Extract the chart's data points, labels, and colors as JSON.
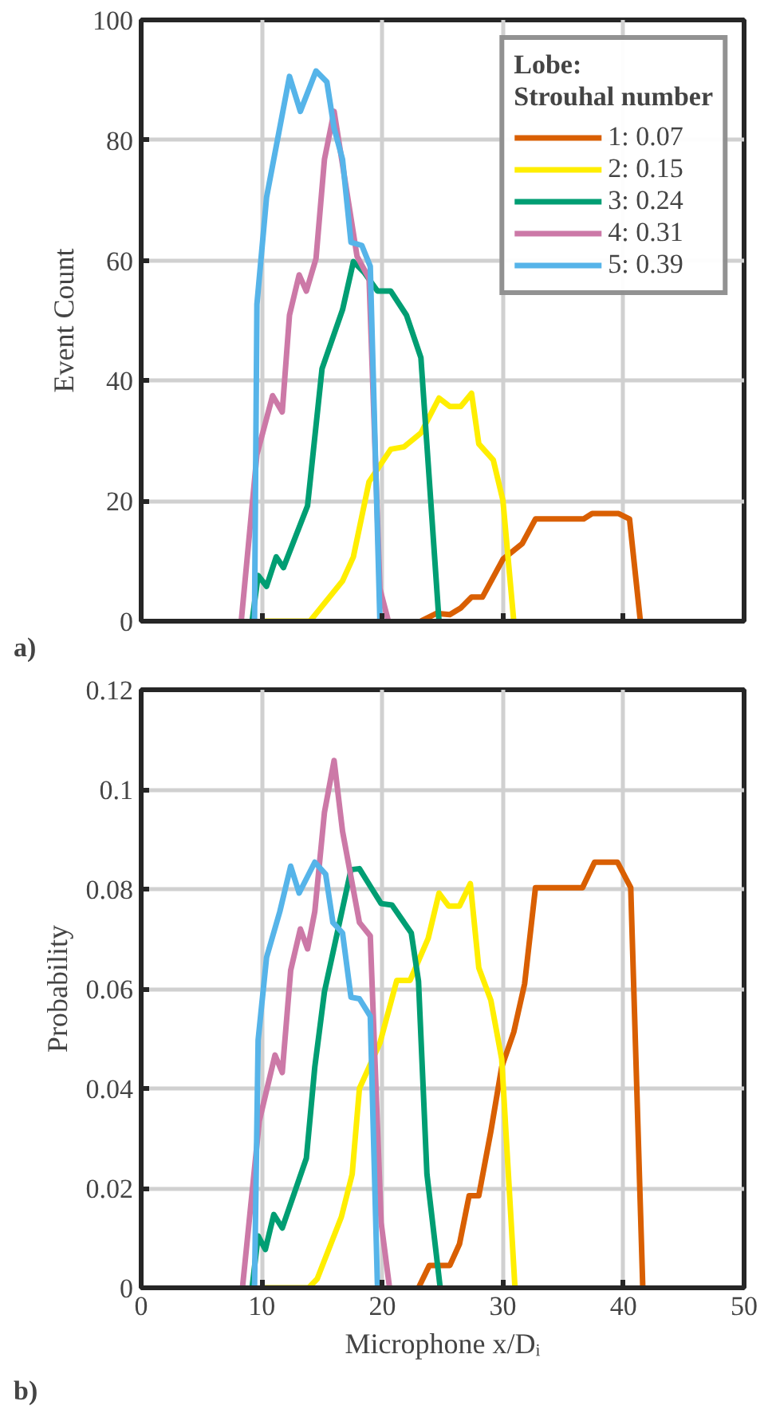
{
  "chart_data": [
    {
      "type": "line",
      "ylabel": "Event Count",
      "annotations": [
        "a)"
      ],
      "legend_title": "Lobe:\nStrouhal number",
      "legend": "top right",
      "grid": true,
      "tick_labels": "y",
      "xlim": [
        0,
        50
      ],
      "xticks": [
        0,
        10,
        20,
        30,
        40,
        50
      ],
      "ylim": [
        0,
        100
      ],
      "yticks": [
        0,
        20,
        40,
        60,
        80,
        100
      ],
      "series": [
        {
          "name": "1: 0.07",
          "color": "#d95f02",
          "x": [
            23.2,
            24.5,
            25.6,
            26.5,
            27.4,
            28.3,
            30.0,
            31.6,
            32.7,
            36.7,
            37.4,
            39.6,
            40.5,
            41.4
          ],
          "values": [
            0,
            1.3,
            1.1,
            2.2,
            4,
            4,
            10.3,
            12.9,
            17,
            17,
            17.9,
            17.9,
            17,
            0
          ]
        },
        {
          "name": "2: 0.15",
          "color": "#ffee00",
          "x": [
            10.0,
            14.0,
            16.7,
            17.6,
            18.9,
            20.7,
            21.8,
            23.2,
            24.7,
            25.6,
            26.5,
            27.4,
            28.0,
            29.2,
            30.0,
            30.9
          ],
          "values": [
            0,
            0,
            6.7,
            10.7,
            23.2,
            28.6,
            29,
            31.3,
            37.1,
            35.7,
            35.7,
            37.9,
            29.5,
            26.8,
            20.1,
            0
          ]
        },
        {
          "name": "3: 0.24",
          "color": "#009e73",
          "x": [
            9.2,
            9.7,
            10.4,
            11.2,
            11.8,
            13.8,
            15.0,
            16.7,
            17.6,
            18.5,
            19.6,
            20.7,
            22.0,
            23.2,
            24.7
          ],
          "values": [
            0,
            7.6,
            5.8,
            10.7,
            8.9,
            19.2,
            42,
            51.8,
            59.8,
            58,
            54.9,
            54.9,
            50.9,
            43.8,
            0
          ]
        },
        {
          "name": "4: 0.31",
          "color": "#cc79a7",
          "x": [
            8.3,
            9.6,
            10.9,
            11.7,
            12.3,
            13.1,
            13.7,
            14.5,
            15.2,
            16.0,
            17.2,
            17.9,
            18.9,
            19.8,
            20.5
          ],
          "values": [
            0,
            27.7,
            37.5,
            34.8,
            50.9,
            57.6,
            54.9,
            60.3,
            76.8,
            84.8,
            69.6,
            60.7,
            57,
            5.4,
            0
          ]
        },
        {
          "name": "5: 0.39",
          "color": "#56b4e9",
          "x": [
            9.4,
            9.6,
            10.4,
            12.3,
            13.2,
            14.5,
            15.4,
            16.0,
            16.7,
            17.4,
            18.3,
            19.0,
            19.8
          ],
          "values": [
            0,
            52.7,
            70.5,
            90.6,
            84.8,
            91.5,
            89.7,
            82,
            76.8,
            63,
            62.5,
            59,
            0
          ]
        }
      ]
    },
    {
      "type": "line",
      "ylabel": "Probability",
      "xlabel": "Microphone x/Dᵢ",
      "annotations": [
        "b)"
      ],
      "grid": true,
      "xlim": [
        0,
        50
      ],
      "xticks": [
        0,
        10,
        20,
        30,
        40,
        50
      ],
      "ylim": [
        0,
        0.12
      ],
      "yticks": [
        0,
        0.02,
        0.04,
        0.06,
        0.08,
        0.1,
        0.12
      ],
      "series": [
        {
          "color": "#d95f02",
          "x": [
            23.0,
            23.9,
            25.6,
            26.4,
            27.2,
            28.0,
            29.0,
            29.9,
            30.9,
            31.8,
            32.7,
            36.6,
            37.6,
            39.5,
            40.6,
            41.6
          ],
          "values": [
            0,
            0.0045,
            0.0045,
            0.0088,
            0.0185,
            0.0185,
            0.0314,
            0.0443,
            0.0513,
            0.061,
            0.0803,
            0.0803,
            0.0854,
            0.0854,
            0.0803,
            0
          ]
        },
        {
          "color": "#ffee00",
          "x": [
            9.9,
            13.9,
            14.6,
            16.6,
            17.5,
            18.1,
            19.8,
            21.2,
            22.3,
            23.8,
            24.7,
            25.5,
            26.4,
            27.3,
            28.0,
            29.0,
            29.9,
            31.0
          ],
          "values": [
            0,
            0,
            0.0018,
            0.0142,
            0.0228,
            0.04,
            0.0491,
            0.0617,
            0.0617,
            0.0701,
            0.0792,
            0.0766,
            0.0766,
            0.0811,
            0.0642,
            0.0577,
            0.0459,
            0
          ]
        },
        {
          "color": "#009e73",
          "x": [
            9.2,
            9.7,
            10.3,
            11.0,
            11.7,
            13.7,
            14.4,
            15.2,
            17.4,
            18.1,
            19.2,
            19.9,
            20.8,
            22.4,
            23.0,
            23.7,
            24.8
          ],
          "values": [
            0,
            0.0104,
            0.0077,
            0.0147,
            0.012,
            0.026,
            0.0443,
            0.0594,
            0.0839,
            0.0841,
            0.0798,
            0.0771,
            0.0768,
            0.0712,
            0.0615,
            0.0228,
            0
          ]
        },
        {
          "color": "#cc79a7",
          "x": [
            8.4,
            9.8,
            11.1,
            11.7,
            12.4,
            13.2,
            13.8,
            14.4,
            15.2,
            16.0,
            16.7,
            18.1,
            19.0,
            19.9,
            20.6
          ],
          "values": [
            0,
            0.0335,
            0.0467,
            0.0432,
            0.0637,
            0.072,
            0.068,
            0.0755,
            0.0954,
            0.1058,
            0.0916,
            0.0733,
            0.0706,
            0.0131,
            0
          ]
        },
        {
          "color": "#56b4e9",
          "x": [
            9.4,
            9.7,
            10.4,
            11.5,
            12.4,
            13.1,
            14.4,
            15.3,
            15.9,
            16.7,
            17.4,
            18.1,
            19.0,
            19.6
          ],
          "values": [
            0,
            0.0497,
            0.0663,
            0.0755,
            0.0846,
            0.0792,
            0.0854,
            0.083,
            0.0733,
            0.0712,
            0.0583,
            0.058,
            0.0545,
            0
          ]
        }
      ]
    }
  ]
}
